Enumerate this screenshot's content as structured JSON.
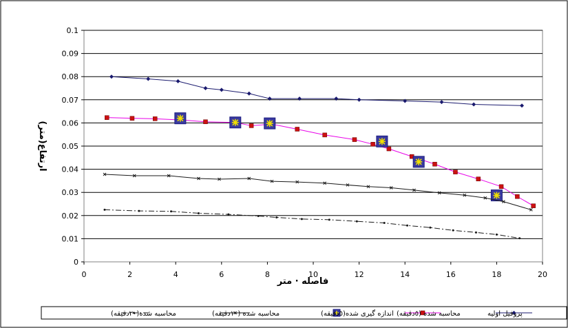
{
  "chart_data": {
    "type": "line",
    "title": "",
    "xlabel": "فاصله · متر",
    "ylabel": "ارتفاع(متر)",
    "xlim": [
      0,
      20
    ],
    "ylim": [
      0,
      0.1
    ],
    "x_ticks": [
      "0",
      "2",
      "4",
      "6",
      "8",
      "10",
      "12",
      "14",
      "16",
      "18",
      "20"
    ],
    "y_ticks": [
      "0",
      "0.01",
      "0.02",
      "0.03",
      "0.04",
      "0.05",
      "0.06",
      "0.07",
      "0.08",
      "0.09",
      "0.1"
    ],
    "grid": "horizontal",
    "legend_position": "bottom",
    "series": [
      {
        "name": "پروفیل اولیه",
        "color": "#1a1a6e",
        "style": "solid-diamond",
        "points": [
          [
            1.2,
            0.08
          ],
          [
            2.8,
            0.079
          ],
          [
            4.1,
            0.078
          ],
          [
            5.3,
            0.075
          ],
          [
            6.0,
            0.0743
          ],
          [
            7.2,
            0.0727
          ],
          [
            8.1,
            0.0705
          ],
          [
            9.4,
            0.0705
          ],
          [
            11.0,
            0.0705
          ],
          [
            12.0,
            0.07
          ],
          [
            14.0,
            0.0695
          ],
          [
            15.6,
            0.069
          ],
          [
            17.0,
            0.068
          ],
          [
            19.1,
            0.0675
          ]
        ]
      },
      {
        "name": "محاسبه شده (٥دقیقه)",
        "color": "#e800e8",
        "marker_color": "#cc1111",
        "style": "solid-square",
        "points": [
          [
            1.0,
            0.0623
          ],
          [
            2.1,
            0.062
          ],
          [
            3.1,
            0.0618
          ],
          [
            4.2,
            0.0613
          ],
          [
            5.3,
            0.0605
          ],
          [
            6.6,
            0.0602
          ],
          [
            7.3,
            0.0588
          ],
          [
            8.2,
            0.0595
          ],
          [
            9.3,
            0.0573
          ],
          [
            10.5,
            0.0548
          ],
          [
            11.8,
            0.0528
          ],
          [
            12.6,
            0.0508
          ],
          [
            13.3,
            0.0488
          ],
          [
            14.3,
            0.0455
          ],
          [
            15.3,
            0.0422
          ],
          [
            16.2,
            0.0388
          ],
          [
            17.2,
            0.0358
          ],
          [
            18.2,
            0.0325
          ],
          [
            18.9,
            0.0282
          ],
          [
            19.6,
            0.0242
          ]
        ]
      },
      {
        "name": "اندازه گیری شده(٥دقیقه)",
        "color": "#1c1c80",
        "marker_fill": "#3a3aa0",
        "star_color": "#f0e000",
        "style": "marker-only",
        "points": [
          [
            4.2,
            0.062
          ],
          [
            6.6,
            0.0602
          ],
          [
            8.1,
            0.0598
          ],
          [
            13.0,
            0.052
          ],
          [
            14.6,
            0.0432
          ],
          [
            18.0,
            0.0287
          ]
        ]
      },
      {
        "name": "محاسبه شده (١٠دقیقه)",
        "color": "#1a1a1a",
        "style": "solid-x",
        "points": [
          [
            0.9,
            0.0378
          ],
          [
            2.2,
            0.0372
          ],
          [
            3.7,
            0.0372
          ],
          [
            5.0,
            0.036
          ],
          [
            5.9,
            0.0357
          ],
          [
            7.2,
            0.036
          ],
          [
            8.2,
            0.0348
          ],
          [
            9.3,
            0.0345
          ],
          [
            10.5,
            0.034
          ],
          [
            11.5,
            0.0332
          ],
          [
            12.4,
            0.0325
          ],
          [
            13.4,
            0.032
          ],
          [
            14.4,
            0.031
          ],
          [
            15.5,
            0.0298
          ],
          [
            16.6,
            0.0288
          ],
          [
            17.5,
            0.0276
          ],
          [
            18.3,
            0.026
          ],
          [
            19.5,
            0.0225
          ]
        ]
      },
      {
        "name": "محاسبه شده(٢٠دقیقه)",
        "color": "#1a1a1a",
        "style": "dashdot-dot",
        "points": [
          [
            0.9,
            0.0225
          ],
          [
            2.4,
            0.022
          ],
          [
            3.8,
            0.0218
          ],
          [
            5.0,
            0.021
          ],
          [
            6.3,
            0.0205
          ],
          [
            7.6,
            0.0198
          ],
          [
            8.4,
            0.0192
          ],
          [
            9.5,
            0.0185
          ],
          [
            10.7,
            0.0182
          ],
          [
            11.9,
            0.0175
          ],
          [
            13.1,
            0.0168
          ],
          [
            14.1,
            0.0157
          ],
          [
            15.1,
            0.0148
          ],
          [
            16.1,
            0.0136
          ],
          [
            17.1,
            0.0127
          ],
          [
            18.0,
            0.0118
          ],
          [
            19.0,
            0.0102
          ]
        ]
      }
    ]
  }
}
